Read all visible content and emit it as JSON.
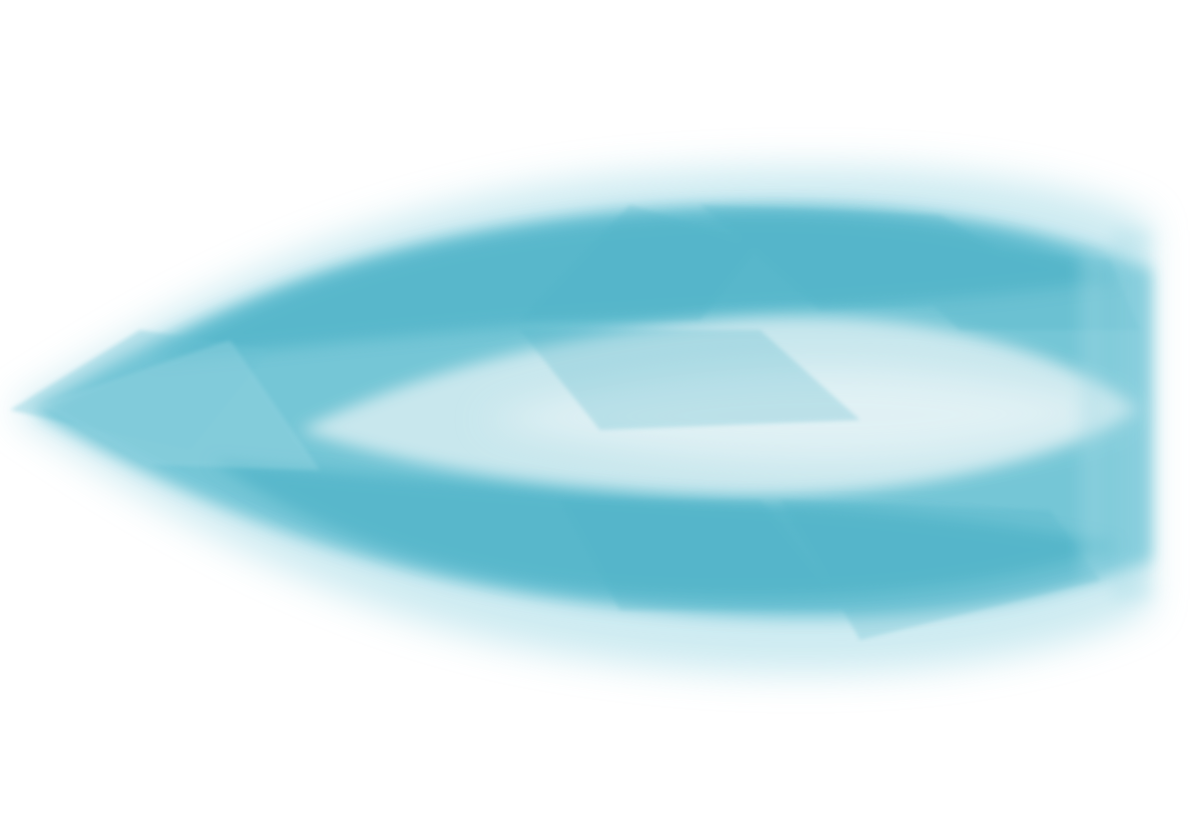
{
  "artwork": {
    "shape": "horizontal-feather-or-leaf-wash",
    "colors": {
      "background": "#ffffff",
      "deep": "#4fb3c8",
      "mid": "#6cc2d4",
      "light": "#a6dbe6",
      "pale": "#d7edf2",
      "highlight": "#e8f4f7"
    }
  }
}
